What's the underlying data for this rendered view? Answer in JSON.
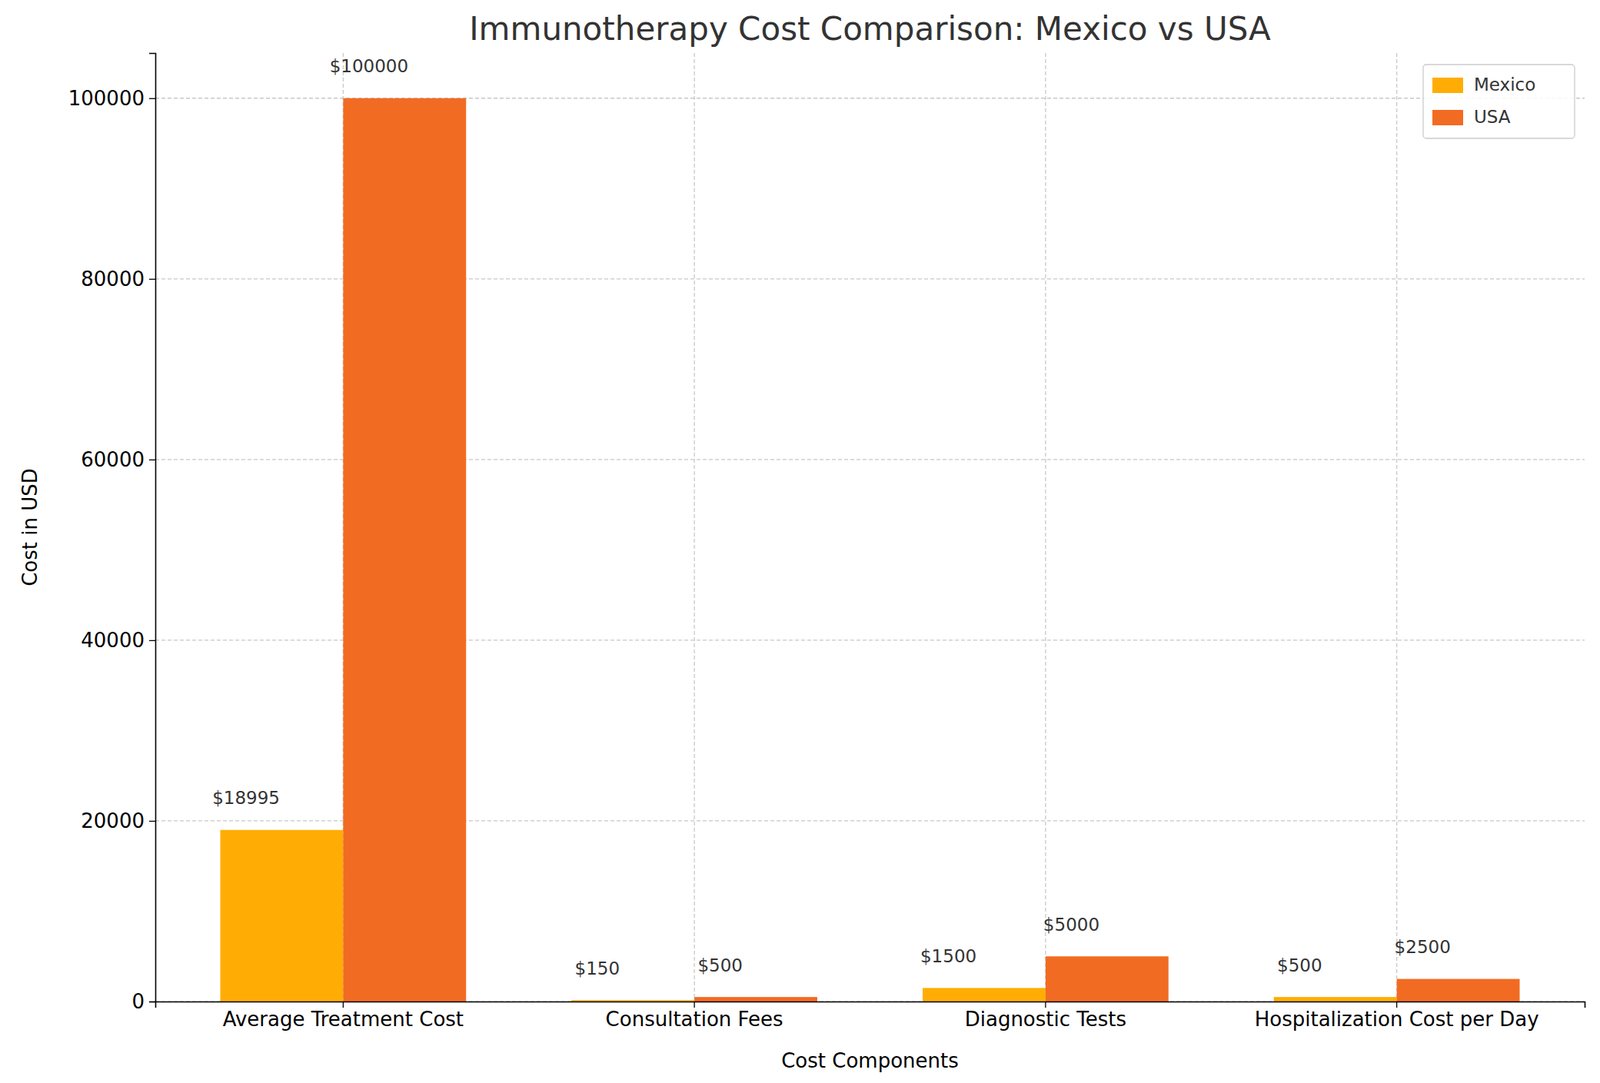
{
  "chart_data": {
    "type": "bar",
    "title": "Immunotherapy Cost Comparison: Mexico vs USA",
    "x_label": "Cost Components",
    "y_label": "Cost in USD",
    "categories": [
      "Average Treatment Cost",
      "Consultation Fees",
      "Diagnostic Tests",
      "Hospitalization Cost per Day"
    ],
    "series": [
      {
        "name": "Mexico",
        "color": "#ffad05",
        "values": [
          18995,
          150,
          1500,
          500
        ],
        "value_labels": [
          "$18995",
          "$150",
          "$1500",
          "$500"
        ]
      },
      {
        "name": "USA",
        "color": "#f26b22",
        "values": [
          100000,
          500,
          5000,
          2500
        ],
        "value_labels": [
          "$100000",
          "$500",
          "$5000",
          "$2500"
        ]
      }
    ],
    "ylim": [
      0,
      105000
    ],
    "yticks": [
      0,
      20000,
      40000,
      60000,
      80000,
      100000
    ],
    "grid": true,
    "legend": "upper right",
    "data_labels": true
  }
}
